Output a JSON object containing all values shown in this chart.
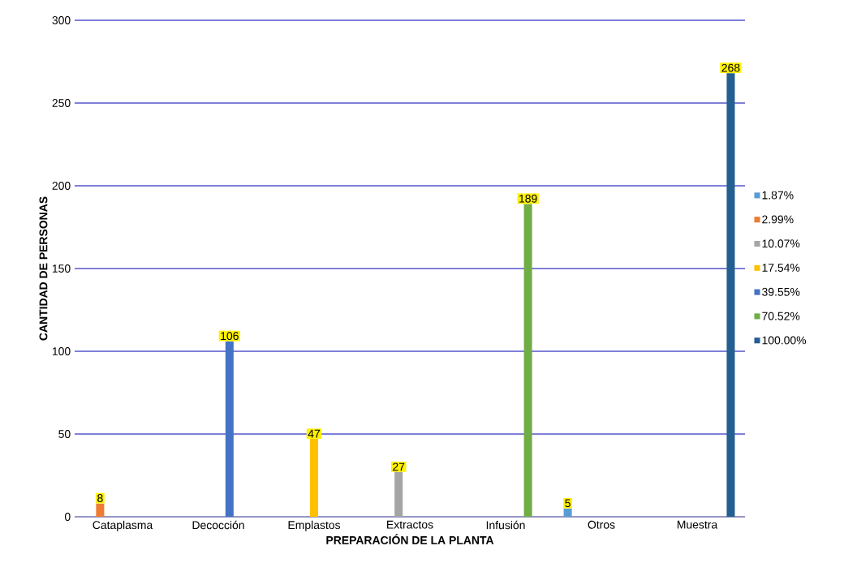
{
  "chart_data": {
    "type": "bar",
    "xlabel": "PREPARACIÓN DE LA PLANTA",
    "ylabel": "CANTIDAD DE PERSONAS",
    "categories": [
      "Cataplasma",
      "Decocción",
      "Emplastos",
      "Extractos",
      "Infusión",
      "Otros",
      "Muestra"
    ],
    "series": [
      {
        "name": "1.87%",
        "color": "#5b9bd5",
        "values": [
          null,
          null,
          null,
          null,
          null,
          5,
          null
        ]
      },
      {
        "name": "2.99%",
        "color": "#ed7d31",
        "values": [
          8,
          null,
          null,
          null,
          null,
          null,
          null
        ]
      },
      {
        "name": "10.07%",
        "color": "#a5a5a5",
        "values": [
          null,
          null,
          null,
          27,
          null,
          null,
          null
        ]
      },
      {
        "name": "17.54%",
        "color": "#ffc000",
        "values": [
          null,
          null,
          47,
          null,
          null,
          null,
          null
        ]
      },
      {
        "name": "39.55%",
        "color": "#4472c4",
        "values": [
          null,
          106,
          null,
          null,
          null,
          null,
          null
        ]
      },
      {
        "name": "70.52%",
        "color": "#70ad47",
        "values": [
          null,
          null,
          null,
          null,
          189,
          null,
          null
        ]
      },
      {
        "name": "100.00%",
        "color": "#255e91",
        "values": [
          null,
          null,
          null,
          null,
          null,
          null,
          268
        ]
      }
    ],
    "ylim": [
      0,
      300
    ],
    "yticks": [
      0,
      50,
      100,
      150,
      200,
      250,
      300
    ],
    "grid": "y",
    "legend": "right",
    "data_labels": true
  }
}
